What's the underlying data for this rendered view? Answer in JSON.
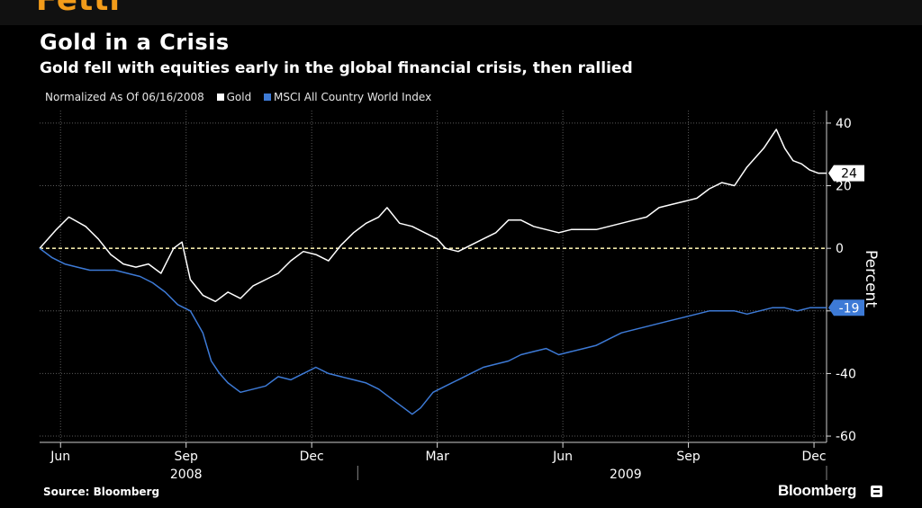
{
  "header": {
    "sliver_text": "Fetti",
    "title": "Gold in a Crisis",
    "subtitle": "Gold fell with equities early in the global financial crisis, then rallied"
  },
  "legend": {
    "normalized_label": "Normalized As Of 06/16/2008",
    "gold_label": "Gold",
    "msci_label": "MSCI All Country World Index"
  },
  "footer": {
    "source": "Source: Bloomberg",
    "brand": "Bloomberg"
  },
  "colors": {
    "gold": "#ffffff",
    "msci": "#3d7ad6",
    "zero_line": "#f0e6a8",
    "grid": "#5a5a5a",
    "sliver": "#f39c1a"
  },
  "chart_data": {
    "type": "line",
    "title": "Gold in a Crisis",
    "subtitle": "Gold fell with equities early in the global financial crisis, then rallied",
    "ylabel": "Percent",
    "ylim": [
      -62,
      44
    ],
    "y_ticks": [
      -60,
      -40,
      -20,
      0,
      20,
      40
    ],
    "y_tick_labels": [
      "-60",
      "-40",
      "",
      "0",
      "20",
      "40"
    ],
    "x_range": [
      5.5,
      24.3
    ],
    "x_ticks": [
      {
        "pos": 6,
        "label": "Jun"
      },
      {
        "pos": 9,
        "label": "Sep"
      },
      {
        "pos": 12,
        "label": "Dec"
      },
      {
        "pos": 15,
        "label": "Mar"
      },
      {
        "pos": 18,
        "label": "Jun"
      },
      {
        "pos": 21,
        "label": "Sep"
      },
      {
        "pos": 24,
        "label": "Dec"
      }
    ],
    "year_labels": [
      {
        "pos": 9,
        "label": "2008"
      },
      {
        "pos": 19.5,
        "label": "2009"
      }
    ],
    "zero_line": 0,
    "series": [
      {
        "name": "Gold",
        "last_value": 24,
        "last_label": "24",
        "points": [
          [
            5.5,
            0
          ],
          [
            5.7,
            3
          ],
          [
            5.9,
            6
          ],
          [
            6.2,
            10
          ],
          [
            6.6,
            7
          ],
          [
            6.9,
            3
          ],
          [
            7.2,
            -2
          ],
          [
            7.5,
            -5
          ],
          [
            7.8,
            -6
          ],
          [
            8.1,
            -5
          ],
          [
            8.4,
            -8
          ],
          [
            8.7,
            0
          ],
          [
            8.9,
            2
          ],
          [
            9.1,
            -10
          ],
          [
            9.4,
            -15
          ],
          [
            9.7,
            -17
          ],
          [
            10.0,
            -14
          ],
          [
            10.3,
            -16
          ],
          [
            10.6,
            -12
          ],
          [
            10.9,
            -10
          ],
          [
            11.2,
            -8
          ],
          [
            11.5,
            -4
          ],
          [
            11.8,
            -1
          ],
          [
            12.1,
            -2
          ],
          [
            12.4,
            -4
          ],
          [
            12.7,
            1
          ],
          [
            13.0,
            5
          ],
          [
            13.3,
            8
          ],
          [
            13.6,
            10
          ],
          [
            13.8,
            13
          ],
          [
            14.1,
            8
          ],
          [
            14.4,
            7
          ],
          [
            14.7,
            5
          ],
          [
            15.0,
            3
          ],
          [
            15.2,
            0
          ],
          [
            15.5,
            -1
          ],
          [
            15.8,
            1
          ],
          [
            16.1,
            3
          ],
          [
            16.4,
            5
          ],
          [
            16.7,
            9
          ],
          [
            17.0,
            9
          ],
          [
            17.3,
            7
          ],
          [
            17.6,
            6
          ],
          [
            17.9,
            5
          ],
          [
            18.2,
            6
          ],
          [
            18.5,
            6
          ],
          [
            18.8,
            6
          ],
          [
            19.1,
            7
          ],
          [
            19.4,
            8
          ],
          [
            19.7,
            9
          ],
          [
            20.0,
            10
          ],
          [
            20.3,
            13
          ],
          [
            20.6,
            14
          ],
          [
            20.9,
            15
          ],
          [
            21.2,
            16
          ],
          [
            21.5,
            19
          ],
          [
            21.8,
            21
          ],
          [
            22.1,
            20
          ],
          [
            22.4,
            26
          ],
          [
            22.6,
            29
          ],
          [
            22.8,
            32
          ],
          [
            23.0,
            36
          ],
          [
            23.1,
            38
          ],
          [
            23.3,
            32
          ],
          [
            23.5,
            28
          ],
          [
            23.7,
            27
          ],
          [
            23.9,
            25
          ],
          [
            24.1,
            24
          ],
          [
            24.3,
            24
          ]
        ]
      },
      {
        "name": "MSCI All Country World Index",
        "last_value": -19,
        "last_label": "-19",
        "points": [
          [
            5.5,
            0
          ],
          [
            5.8,
            -3
          ],
          [
            6.1,
            -5
          ],
          [
            6.4,
            -6
          ],
          [
            6.7,
            -7
          ],
          [
            7.0,
            -7
          ],
          [
            7.3,
            -7
          ],
          [
            7.6,
            -8
          ],
          [
            7.9,
            -9
          ],
          [
            8.2,
            -11
          ],
          [
            8.5,
            -14
          ],
          [
            8.8,
            -18
          ],
          [
            9.1,
            -20
          ],
          [
            9.4,
            -27
          ],
          [
            9.6,
            -36
          ],
          [
            9.8,
            -40
          ],
          [
            10.0,
            -43
          ],
          [
            10.3,
            -46
          ],
          [
            10.6,
            -45
          ],
          [
            10.9,
            -44
          ],
          [
            11.2,
            -41
          ],
          [
            11.5,
            -42
          ],
          [
            11.8,
            -40
          ],
          [
            12.1,
            -38
          ],
          [
            12.4,
            -40
          ],
          [
            12.7,
            -41
          ],
          [
            13.0,
            -42
          ],
          [
            13.3,
            -43
          ],
          [
            13.6,
            -45
          ],
          [
            13.9,
            -48
          ],
          [
            14.2,
            -51
          ],
          [
            14.4,
            -53
          ],
          [
            14.6,
            -51
          ],
          [
            14.9,
            -46
          ],
          [
            15.2,
            -44
          ],
          [
            15.5,
            -42
          ],
          [
            15.8,
            -40
          ],
          [
            16.1,
            -38
          ],
          [
            16.4,
            -37
          ],
          [
            16.7,
            -36
          ],
          [
            17.0,
            -34
          ],
          [
            17.3,
            -33
          ],
          [
            17.6,
            -32
          ],
          [
            17.9,
            -34
          ],
          [
            18.2,
            -33
          ],
          [
            18.5,
            -32
          ],
          [
            18.8,
            -31
          ],
          [
            19.1,
            -29
          ],
          [
            19.4,
            -27
          ],
          [
            19.7,
            -26
          ],
          [
            20.0,
            -25
          ],
          [
            20.3,
            -24
          ],
          [
            20.6,
            -23
          ],
          [
            20.9,
            -22
          ],
          [
            21.2,
            -21
          ],
          [
            21.5,
            -20
          ],
          [
            21.8,
            -20
          ],
          [
            22.1,
            -20
          ],
          [
            22.4,
            -21
          ],
          [
            22.7,
            -20
          ],
          [
            23.0,
            -19
          ],
          [
            23.3,
            -19
          ],
          [
            23.6,
            -20
          ],
          [
            23.9,
            -19
          ],
          [
            24.3,
            -19
          ]
        ]
      }
    ]
  }
}
